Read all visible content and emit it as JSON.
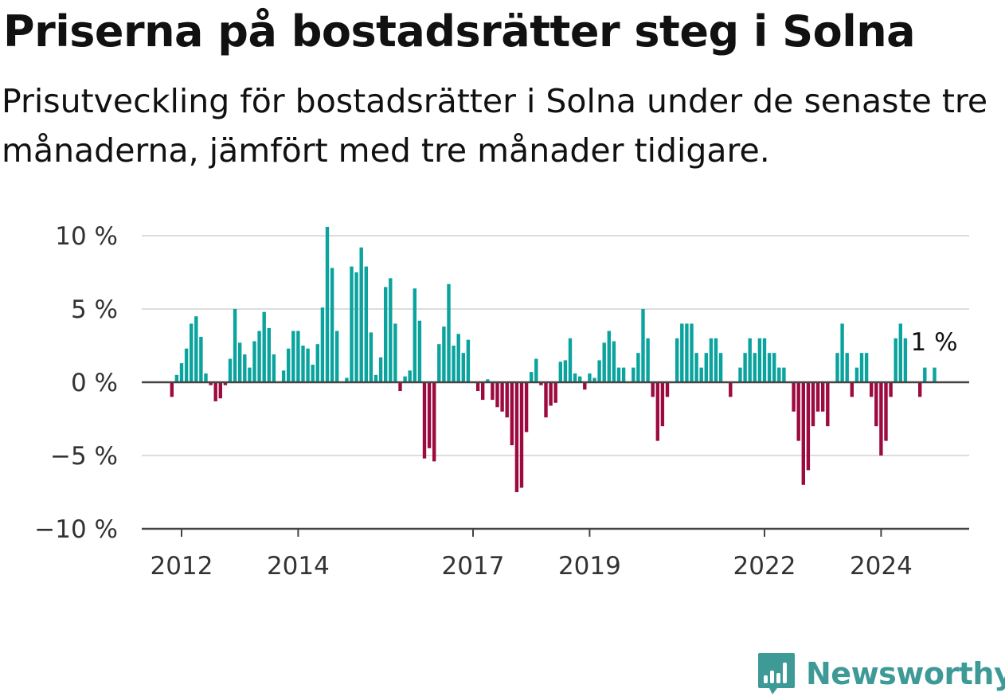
{
  "title": "Priserna på bostadsrätter steg i Solna",
  "subtitle": "Prisutveckling för bostadsrätter i Solna under de senaste tre månaderna, jämfört med tre månader tidigare.",
  "brand": {
    "name": "Newsworthy",
    "color": "#3d9a96",
    "icon": "newsworthy-logo-icon"
  },
  "colors": {
    "positive": "#0aa39e",
    "negative": "#9c0a3f",
    "grid": "#dddddd",
    "axis": "#444444"
  },
  "chart_data": {
    "type": "bar",
    "unit": "%",
    "start_month": "2011-11",
    "frequency": "monthly",
    "ylim": [
      -10,
      10
    ],
    "yticks": [
      10,
      5,
      0,
      -5,
      -10
    ],
    "ytick_labels": [
      "10 %",
      "5 %",
      "0 %",
      "−5 %",
      "−10 %"
    ],
    "xticks": [
      2012,
      2014,
      2017,
      2019,
      2022,
      2024
    ],
    "xtick_labels": [
      "2012",
      "2014",
      "2017",
      "2019",
      "2022",
      "2024"
    ],
    "grid": true,
    "end_label": "1 %",
    "values": [
      -1,
      0.5,
      1.3,
      2.3,
      4,
      4.5,
      3.1,
      0.6,
      -0.2,
      -1.3,
      -1.1,
      -0.2,
      1.6,
      5,
      2.7,
      1.9,
      1,
      2.8,
      3.5,
      4.8,
      3.7,
      1.9,
      0,
      0.8,
      2.3,
      3.5,
      3.5,
      2.5,
      2.3,
      1.2,
      2.6,
      5.1,
      10.6,
      7.8,
      3.5,
      0,
      0.3,
      7.9,
      7.5,
      9.2,
      7.9,
      3.4,
      0.5,
      1.7,
      6.5,
      7.1,
      4,
      -0.6,
      0.4,
      0.8,
      6.4,
      4.2,
      -5.2,
      -4.5,
      -5.4,
      2.6,
      3.8,
      6.7,
      2.5,
      3.3,
      2,
      2.9,
      0,
      -0.6,
      -1.2,
      0.2,
      -1.2,
      -1.7,
      -2,
      -2.4,
      -4.3,
      -7.5,
      -7.2,
      -3.4,
      0.7,
      1.6,
      -0.2,
      -2.4,
      -1.6,
      -1.4,
      1.4,
      1.5,
      3,
      0.6,
      0.4,
      -0.5,
      0.6,
      0.3,
      1.5,
      2.7,
      3.5,
      2.8,
      1,
      1,
      0,
      1,
      2,
      5,
      3,
      -1,
      -4,
      -3,
      -1,
      0,
      3,
      4,
      4,
      4,
      2,
      1,
      2,
      3,
      3,
      2,
      0,
      -1,
      0,
      1,
      2,
      3,
      2,
      3,
      3,
      2,
      2,
      1,
      1,
      0,
      -2,
      -4,
      -7,
      -6,
      -3,
      -2,
      -2,
      -3,
      0,
      2,
      4,
      2,
      -1,
      1,
      2,
      2,
      -1,
      -3,
      -5,
      -4,
      -1,
      3,
      4,
      3,
      0,
      0,
      -1,
      1,
      0,
      1
    ]
  }
}
